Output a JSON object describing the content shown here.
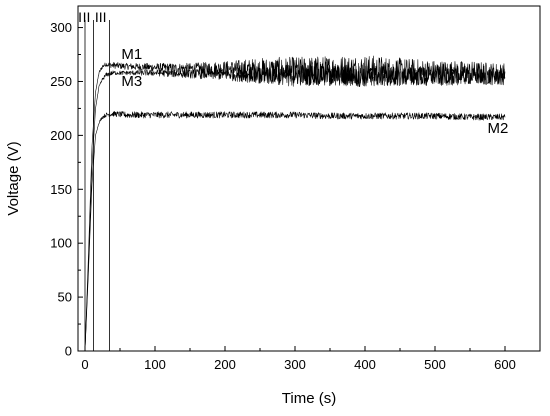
{
  "chart_data": {
    "type": "line",
    "title": "",
    "xlabel": "Time (s)",
    "ylabel": "Voltage (V)",
    "xlim": [
      -10,
      650
    ],
    "ylim": [
      0,
      320
    ],
    "x_ticks": [
      0,
      100,
      200,
      300,
      400,
      500,
      600
    ],
    "y_ticks": [
      0,
      50,
      100,
      150,
      200,
      250,
      300
    ],
    "grid": false,
    "legend": "none",
    "line_color": "#000000",
    "stage_markers": [
      {
        "label": "I",
        "x": 0
      },
      {
        "label": "II",
        "x": 12
      },
      {
        "label": "III",
        "x": 35
      }
    ],
    "series": [
      {
        "name": "M1",
        "x": [
          0,
          5,
          10,
          15,
          20,
          25,
          30,
          40,
          60,
          100,
          150,
          200,
          250,
          300,
          350,
          400,
          450,
          500,
          550,
          600
        ],
        "values": [
          0,
          90,
          190,
          240,
          258,
          264,
          266,
          265,
          264,
          263,
          262,
          262,
          260,
          259,
          260,
          260,
          259,
          258,
          258,
          257
        ],
        "noise": [
          0,
          0,
          0,
          0,
          1.5,
          2,
          2,
          3,
          3,
          4,
          5,
          7,
          12,
          14,
          14,
          15,
          13,
          12,
          11,
          10
        ]
      },
      {
        "name": "M2",
        "x": [
          0,
          5,
          10,
          15,
          20,
          25,
          30,
          40,
          60,
          100,
          150,
          200,
          250,
          300,
          350,
          400,
          450,
          500,
          550,
          600
        ],
        "values": [
          0,
          75,
          155,
          200,
          212,
          217,
          219,
          220,
          219,
          219,
          219,
          219,
          219,
          219,
          218,
          218,
          218,
          218,
          217,
          217
        ],
        "noise": [
          0,
          0,
          0,
          0,
          1,
          1.5,
          2,
          2.5,
          3,
          3,
          3,
          3,
          3,
          3,
          3,
          3,
          3,
          3,
          3,
          3
        ]
      },
      {
        "name": "M3",
        "x": [
          0,
          5,
          10,
          15,
          20,
          25,
          30,
          40,
          60,
          100,
          150,
          200,
          250,
          300,
          350,
          400,
          450,
          500,
          550,
          600
        ],
        "values": [
          0,
          80,
          170,
          225,
          245,
          252,
          256,
          258,
          258,
          258,
          257,
          257,
          256,
          256,
          256,
          255,
          255,
          255,
          255,
          254
        ],
        "noise": [
          0,
          0,
          0,
          0,
          1,
          1.5,
          2,
          2,
          2,
          3,
          4,
          6,
          8,
          10,
          10,
          10,
          9,
          9,
          8,
          8
        ]
      }
    ],
    "annotations": [
      {
        "text": "M1",
        "x": 52,
        "y": 271
      },
      {
        "text": "M3",
        "x": 52,
        "y": 246
      },
      {
        "text": "M2",
        "x": 575,
        "y": 202
      }
    ]
  }
}
